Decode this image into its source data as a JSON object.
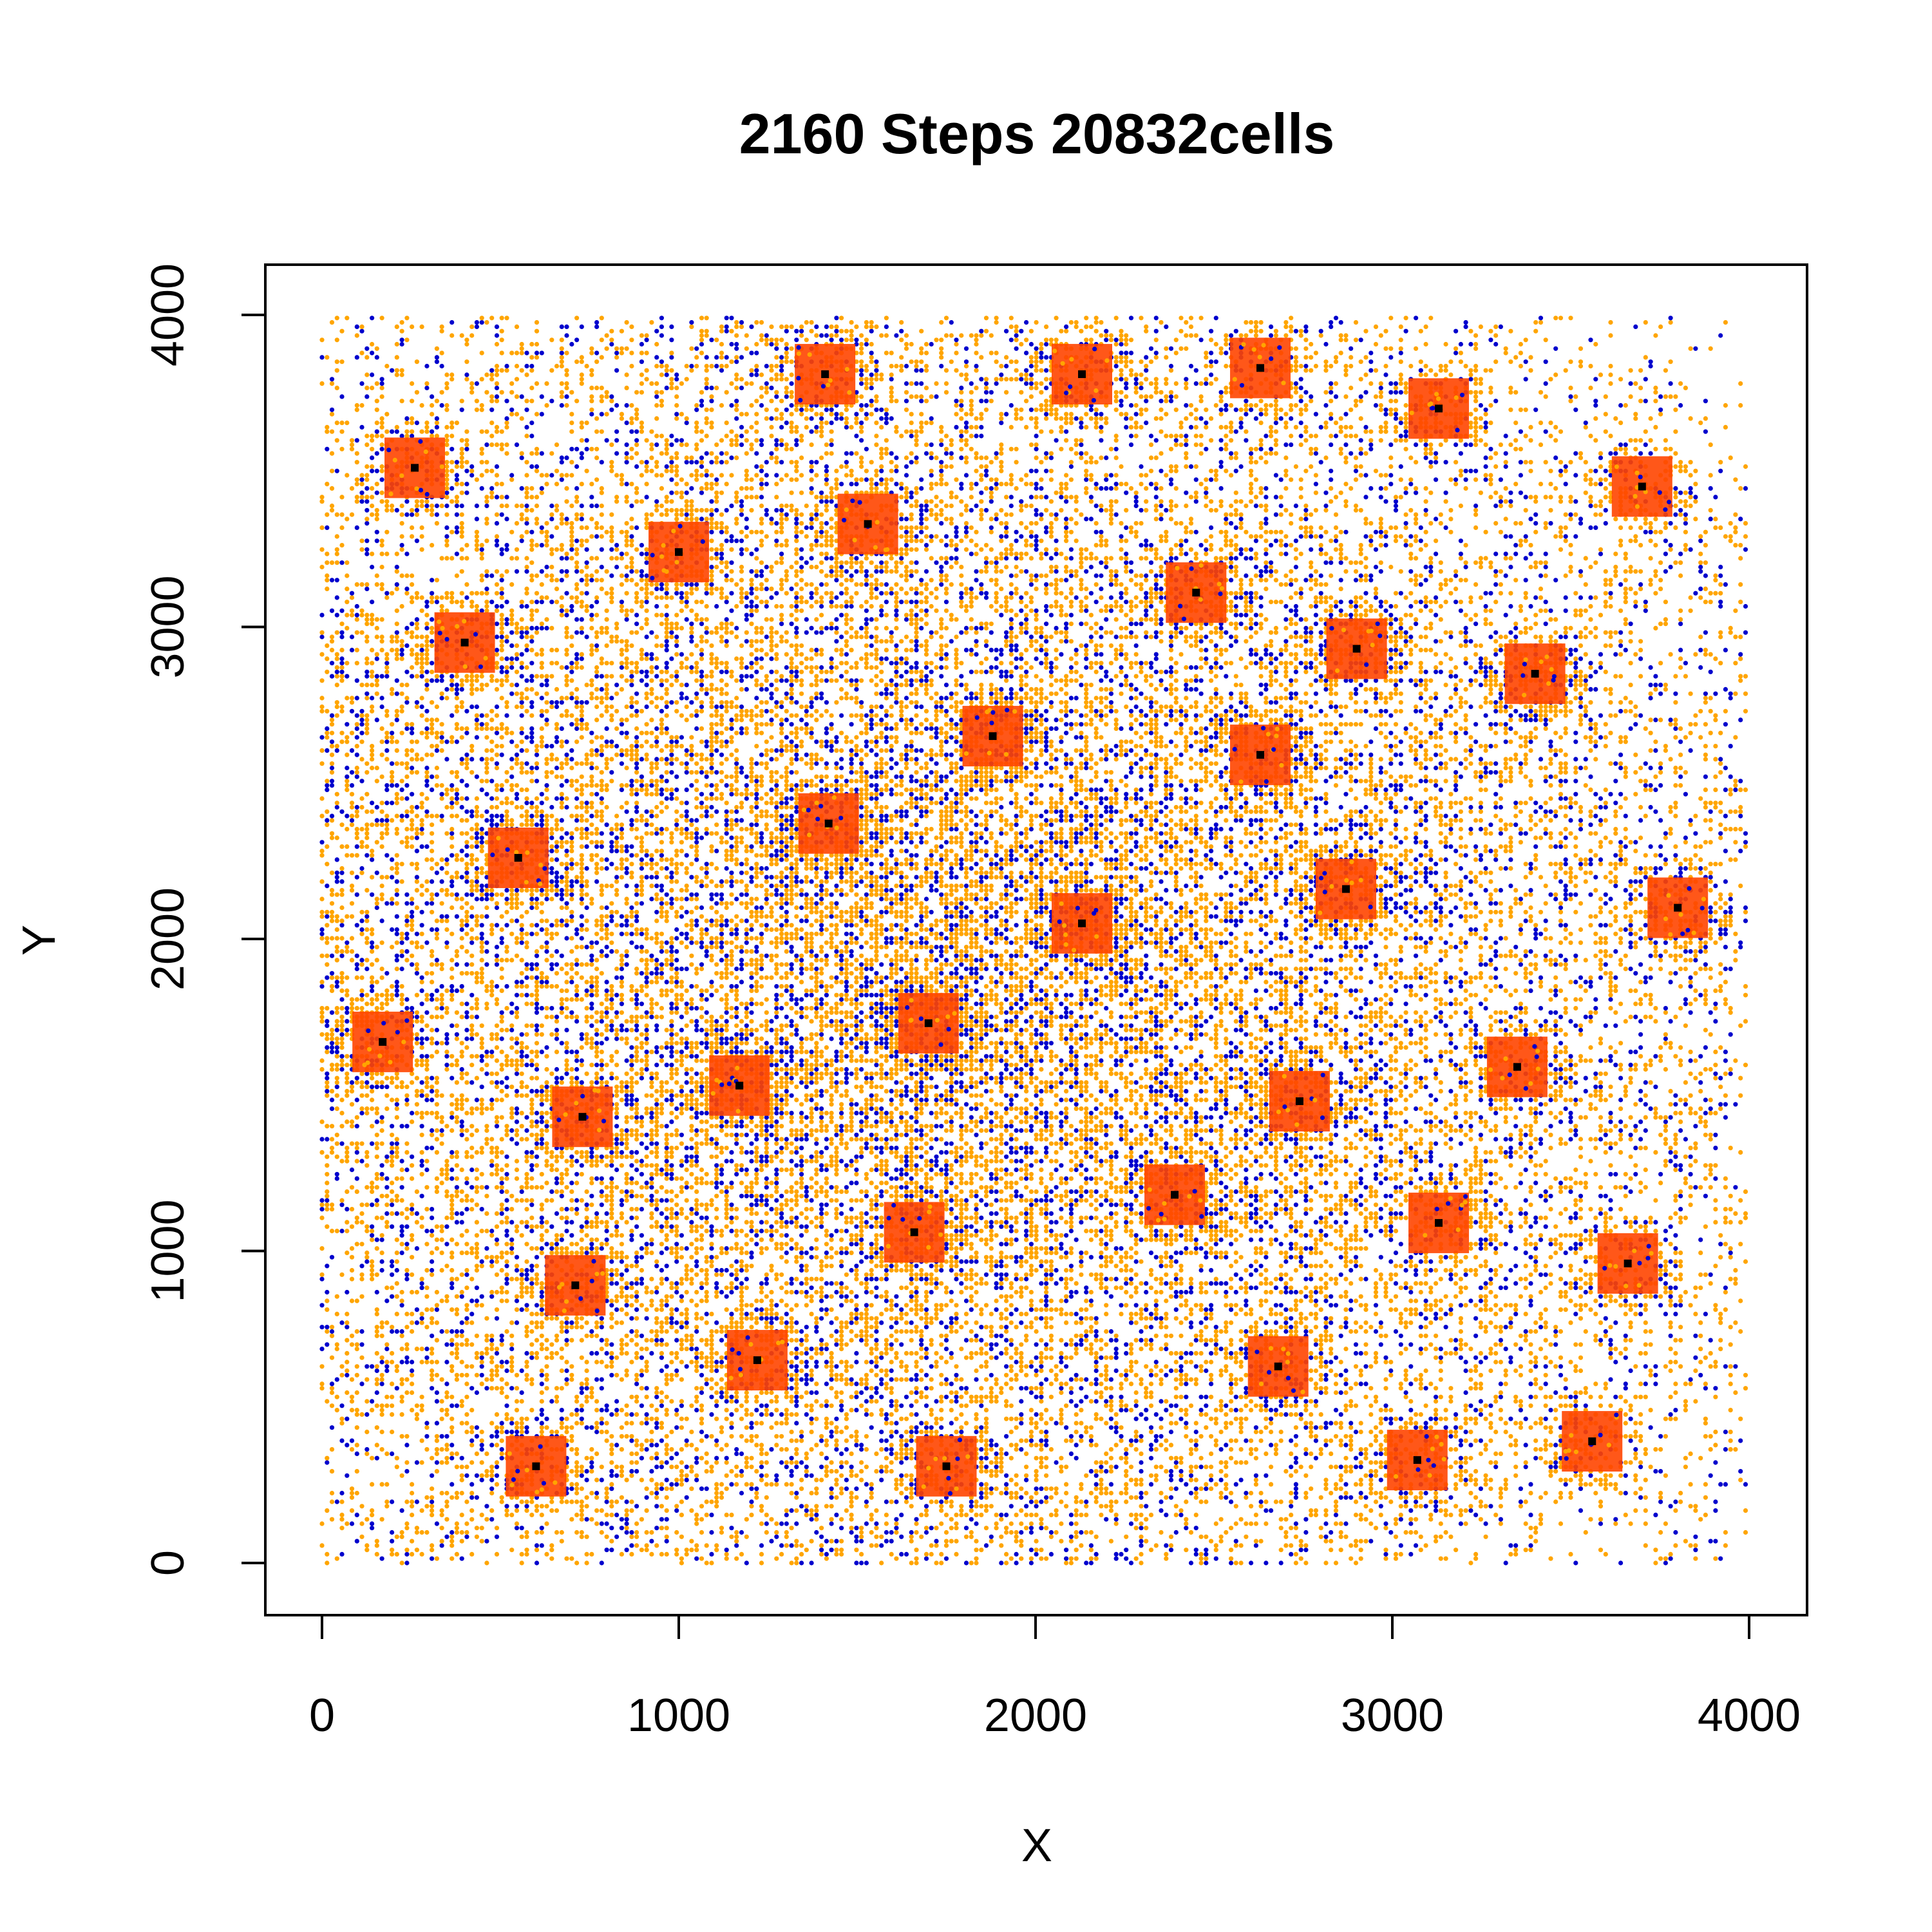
{
  "chart_data": {
    "type": "scatter",
    "title": "2160 Steps   20832cells",
    "xlabel": "X",
    "ylabel": "Y",
    "xlim": [
      0,
      4000
    ],
    "ylim": [
      0,
      4000
    ],
    "x_ticks": [
      0,
      1000,
      2000,
      3000,
      4000
    ],
    "y_ticks": [
      0,
      1000,
      2000,
      3000,
      4000
    ],
    "x_tick_labels": [
      "0",
      "1000",
      "2000",
      "3000",
      "4000"
    ],
    "y_tick_labels": [
      "0",
      "1000",
      "2000",
      "3000",
      "4000"
    ],
    "grid": false,
    "colors": {
      "cells_orange": "#FFA500",
      "cells_blue": "#0000CD",
      "cluster_fill": "#FF4500",
      "cluster_center": "#000000"
    },
    "series": [
      {
        "role": "cluster-centers",
        "marker": "square",
        "points": [
          [
            260,
            3510
          ],
          [
            1410,
            3810
          ],
          [
            2130,
            3810
          ],
          [
            2630,
            3830
          ],
          [
            3130,
            3700
          ],
          [
            3700,
            3450
          ],
          [
            1530,
            3330
          ],
          [
            1000,
            3240
          ],
          [
            400,
            2950
          ],
          [
            2450,
            3110
          ],
          [
            2900,
            2930
          ],
          [
            3400,
            2850
          ],
          [
            1880,
            2650
          ],
          [
            2630,
            2590
          ],
          [
            1420,
            2370
          ],
          [
            550,
            2260
          ],
          [
            2870,
            2160
          ],
          [
            3800,
            2100
          ],
          [
            2130,
            2050
          ],
          [
            1700,
            1730
          ],
          [
            170,
            1670
          ],
          [
            3350,
            1590
          ],
          [
            1170,
            1530
          ],
          [
            2740,
            1480
          ],
          [
            730,
            1430
          ],
          [
            2390,
            1180
          ],
          [
            3130,
            1090
          ],
          [
            1660,
            1060
          ],
          [
            3660,
            960
          ],
          [
            710,
            890
          ],
          [
            1220,
            650
          ],
          [
            2680,
            630
          ],
          [
            600,
            310
          ],
          [
            1750,
            310
          ],
          [
            3070,
            330
          ],
          [
            3560,
            390
          ]
        ]
      }
    ]
  }
}
